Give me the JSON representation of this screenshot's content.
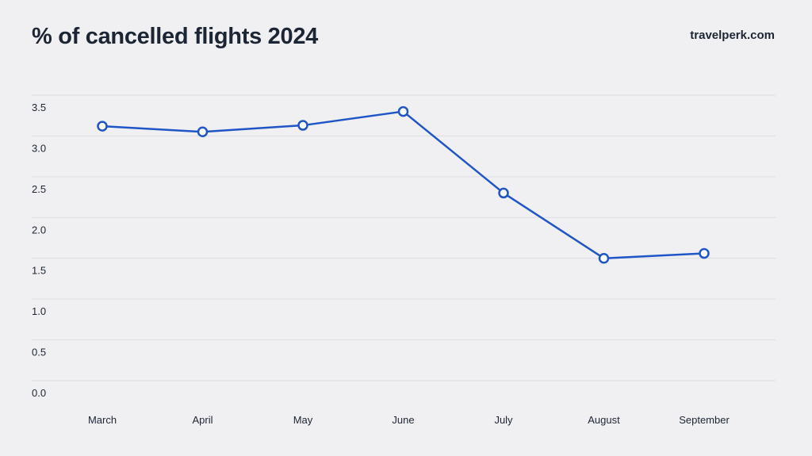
{
  "header": {
    "title": "% of cancelled flights 2024",
    "brand": "travelperk.com"
  },
  "colors": {
    "background": "#f0f0f3",
    "line": "#1f55c7",
    "grid": "#dcdde3",
    "text": "#1c2533"
  },
  "chart_data": {
    "type": "line",
    "title": "% of cancelled flights 2024",
    "xlabel": "",
    "ylabel": "",
    "categories": [
      "March",
      "April",
      "May",
      "June",
      "July",
      "August",
      "September"
    ],
    "series": [
      {
        "values": [
          3.12,
          3.05,
          3.13,
          3.3,
          2.3,
          1.5,
          1.56
        ]
      }
    ],
    "ylim": [
      0,
      3.5
    ],
    "yticks": [
      "0.0",
      "0.5",
      "1.0",
      "1.5",
      "2.0",
      "2.5",
      "3.0",
      "3.5"
    ],
    "grid": true,
    "legend": "none"
  }
}
